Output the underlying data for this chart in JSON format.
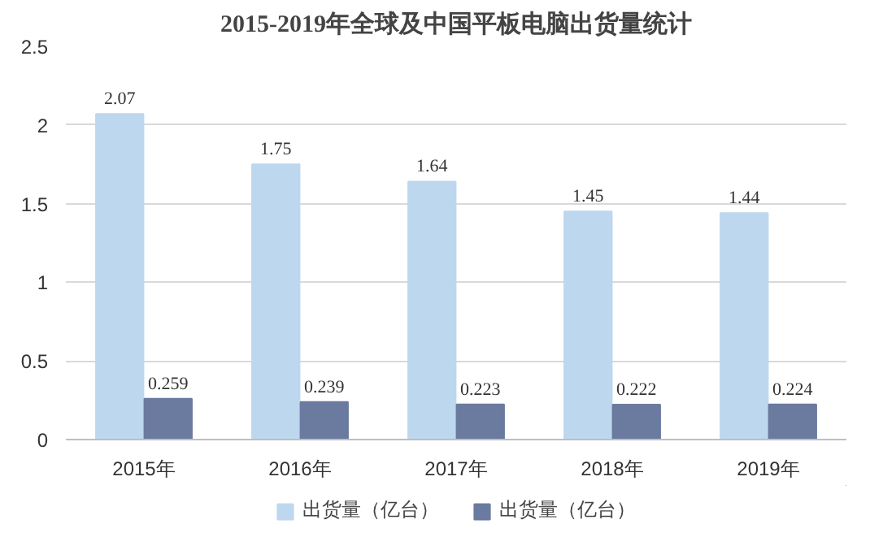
{
  "chart_data": {
    "type": "bar",
    "title": "2015-2019年全球及中国平板电脑出货量统计",
    "categories": [
      "2015年",
      "2016年",
      "2017年",
      "2018年",
      "2019年"
    ],
    "series": [
      {
        "name": "出货量（亿台）",
        "color": "#bdd7ee",
        "values": [
          2.07,
          1.75,
          1.64,
          1.45,
          1.44
        ]
      },
      {
        "name": "出货量（亿台）",
        "color": "#6b7a9f",
        "values": [
          0.259,
          0.239,
          0.223,
          0.222,
          0.224
        ]
      }
    ],
    "ylim": [
      0,
      2.5
    ],
    "yticks": [
      0,
      0.5,
      1,
      1.5,
      2,
      2.5
    ],
    "grid": "y",
    "legend": "bottom",
    "data_labels": true
  }
}
